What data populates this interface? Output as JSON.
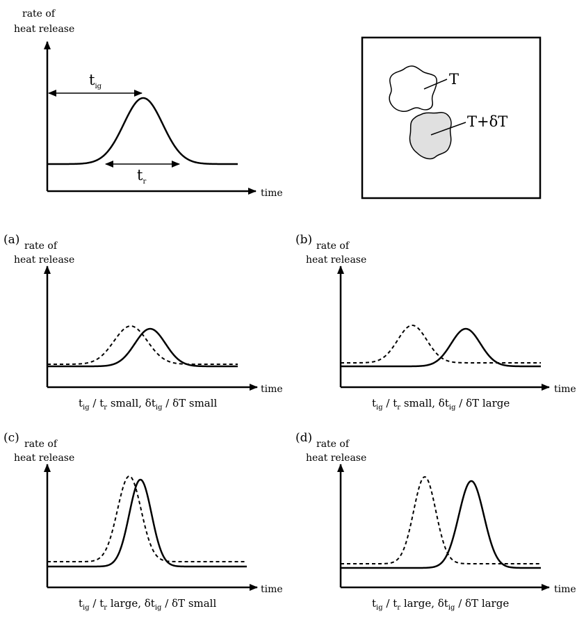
{
  "top_plot": {
    "ylabel_line1": "rate of",
    "ylabel_line2": "heat release",
    "xlabel": "time",
    "t_ig_main": "t",
    "t_ig_sub": "ig",
    "t_r_main": "t",
    "t_r_sub": "r"
  },
  "inset": {
    "label_t": "T",
    "label_t_dt": "T+δT"
  },
  "panels": [
    {
      "tag": "(a)",
      "ylabel_line1": "rate of",
      "ylabel_line2": "heat release",
      "xlabel": "time",
      "caption": {
        "t1": "t",
        "s1": "ig",
        "t2": " / t",
        "s2": "r",
        "t3": " small, δt",
        "s3": "ig",
        "t4": " / δT small"
      }
    },
    {
      "tag": "(b)",
      "ylabel_line1": "rate of",
      "ylabel_line2": "heat release",
      "xlabel": "time",
      "caption": {
        "t1": "t",
        "s1": "ig",
        "t2": " / t",
        "s2": "r",
        "t3": " small, δt",
        "s3": "ig",
        "t4": " / δT large"
      }
    },
    {
      "tag": "(c)",
      "ylabel_line1": "rate of",
      "ylabel_line2": "heat release",
      "xlabel": "time",
      "caption": {
        "t1": "t",
        "s1": "ig",
        "t2": " / t",
        "s2": "r",
        "t3": " large, δt",
        "s3": "ig",
        "t4": " / δT small"
      }
    },
    {
      "tag": "(d)",
      "ylabel_line1": "rate of",
      "ylabel_line2": "heat release",
      "xlabel": "time",
      "caption": {
        "t1": "t",
        "s1": "ig",
        "t2": " / t",
        "s2": "r",
        "t3": " large, δt",
        "s3": "ig",
        "t4": " / δT large"
      }
    }
  ],
  "colors": {
    "ink": "#000000",
    "blob_fill": "#e0e0e0"
  }
}
